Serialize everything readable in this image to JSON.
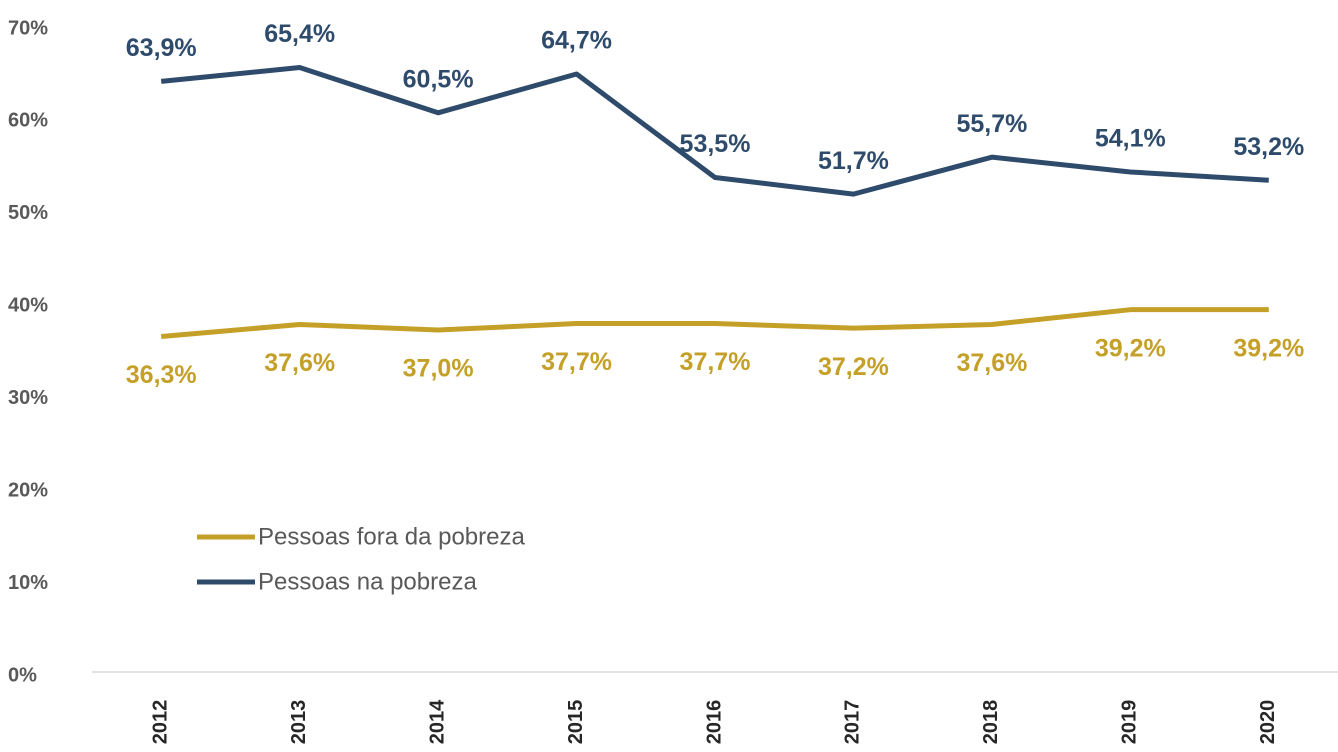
{
  "chart_data": {
    "type": "line",
    "categories": [
      "2012",
      "2013",
      "2014",
      "2015",
      "2016",
      "2017",
      "2018",
      "2019",
      "2020"
    ],
    "series": [
      {
        "name": "Pessoas fora da pobreza",
        "color": "#c5a028",
        "values": [
          36.3,
          37.6,
          37.0,
          37.7,
          37.7,
          37.2,
          37.6,
          39.2,
          39.2
        ],
        "value_labels": [
          "36,3%",
          "37,6%",
          "37,0%",
          "37,7%",
          "37,7%",
          "37,2%",
          "37,6%",
          "39,2%",
          "39,2%"
        ]
      },
      {
        "name": "Pessoas na pobreza",
        "color": "#2f4b6b",
        "values": [
          63.9,
          65.4,
          60.5,
          64.7,
          53.5,
          51.7,
          55.7,
          54.1,
          53.2
        ],
        "value_labels": [
          "63,9%",
          "65,4%",
          "60,5%",
          "64,7%",
          "53,5%",
          "51,7%",
          "55,7%",
          "54,1%",
          "53,2%"
        ]
      }
    ],
    "ylim": [
      0,
      70
    ],
    "yticks": [
      {
        "value": 0,
        "label": "0%"
      },
      {
        "value": 10,
        "label": "10%"
      },
      {
        "value": 20,
        "label": "20%"
      },
      {
        "value": 30,
        "label": "30%"
      },
      {
        "value": 40,
        "label": "40%"
      },
      {
        "value": 50,
        "label": "50%"
      },
      {
        "value": 60,
        "label": "60%"
      },
      {
        "value": 70,
        "label": "70%"
      }
    ],
    "grid": false,
    "legend": "lower left"
  }
}
